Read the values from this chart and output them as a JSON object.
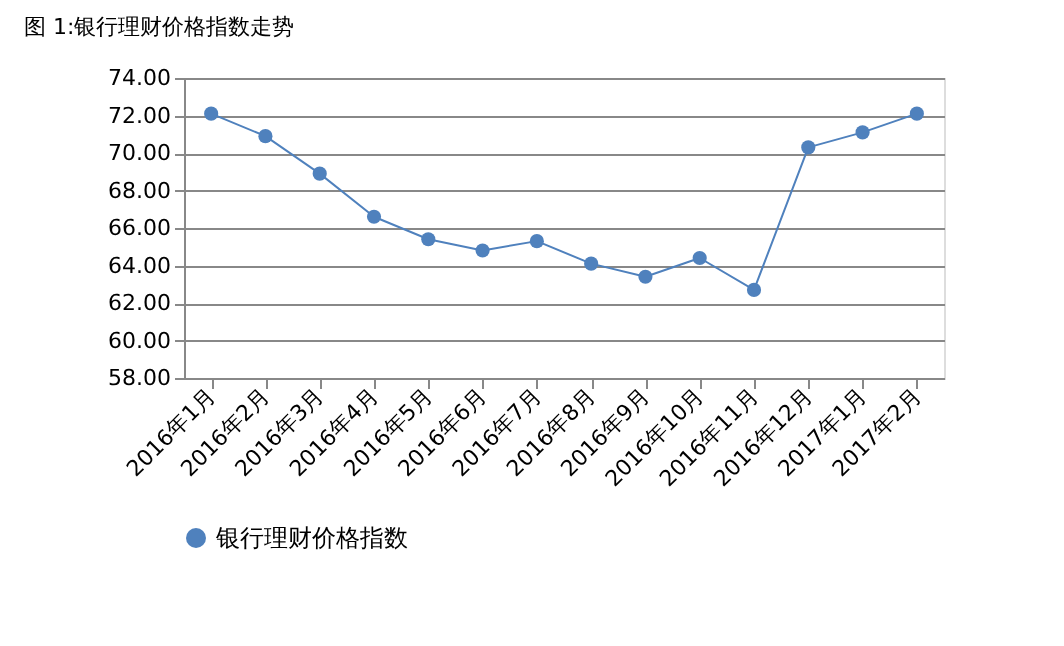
{
  "chart_data": {
    "type": "line",
    "title": "图 1:银行理财价格指数走势",
    "categories": [
      "2016年1月",
      "2016年2月",
      "2016年3月",
      "2016年4月",
      "2016年5月",
      "2016年6月",
      "2016年7月",
      "2016年8月",
      "2016年9月",
      "2016年10月",
      "2016年11月",
      "2016年12月",
      "2017年1月",
      "2017年2月"
    ],
    "series": [
      {
        "name": "银行理财价格指数",
        "color": "#4f81bd",
        "values": [
          72.1,
          70.9,
          68.9,
          66.6,
          65.4,
          64.8,
          65.3,
          64.1,
          63.4,
          64.4,
          62.7,
          70.3,
          71.1,
          72.1
        ]
      }
    ],
    "ylim": [
      58,
      74
    ],
    "yticks": [
      {
        "value": 58,
        "label": "58.00"
      },
      {
        "value": 60,
        "label": "60.00"
      },
      {
        "value": 62,
        "label": "62.00"
      },
      {
        "value": 64,
        "label": "64.00"
      },
      {
        "value": 66,
        "label": "66.00"
      },
      {
        "value": 68,
        "label": "68.00"
      },
      {
        "value": 70,
        "label": "70.00"
      },
      {
        "value": 72,
        "label": "72.00"
      },
      {
        "value": 74,
        "label": "74.00"
      }
    ],
    "grid": "y",
    "legend": "bottom",
    "marker": "circle",
    "line_style": "solid"
  }
}
